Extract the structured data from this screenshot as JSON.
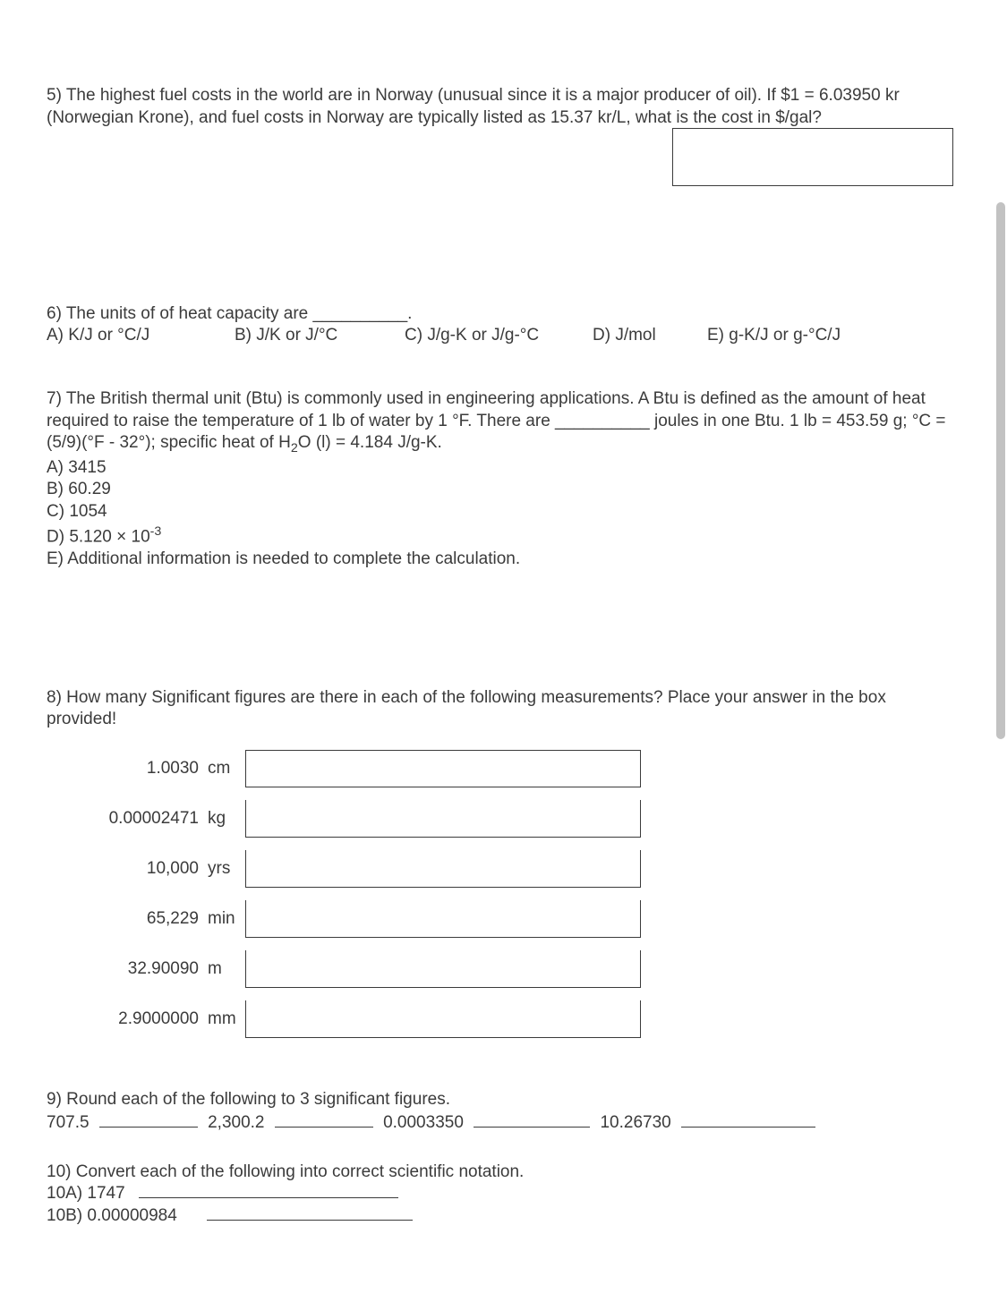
{
  "colors": {
    "text": "#3b3b3b",
    "bg": "#ffffff",
    "border": "#3b3b3b",
    "scroll": "#c2c2c2"
  },
  "q5": {
    "text": "5) The highest fuel costs in the world are in Norway (unusual since it is a major producer of oil).  If $1 = 6.03950 kr (Norwegian Krone), and fuel costs in Norway are typically listed as 15.37 kr/L, what is the cost in $/gal?"
  },
  "q6": {
    "stem": "6) The units of of heat capacity are __________.",
    "A": "A) K/J or °C/J",
    "B": "B) J/K or J/°C",
    "C": "C) J/g-K or J/g-°C",
    "D": "D) J/mol",
    "E": "E) g-K/J or g-°C/J"
  },
  "q7": {
    "line": "7) The British thermal unit (Btu) is commonly used in engineering applications.  A Btu is defined as the amount of heat required to raise the temperature of 1 lb of water by 1 °F.  There are __________ joules in one Btu.  1 lb = 453.59 g; °C = (5/9)(°F - 32°); specific heat of H",
    "line_tail": "O (l) = 4.184 J/g-K.",
    "A": "A) 3415",
    "B": "B) 60.29",
    "C": "C) 1054",
    "D_pre": "D) 5.120 × 10",
    "D_exp": "-3",
    "E": "E) Additional information is needed to complete the calculation."
  },
  "q8": {
    "stem": "8) How many Significant figures are there in each of the following measurements?  Place your answer in the box provided!",
    "rows": [
      {
        "val": "1.0030",
        "unit": "cm"
      },
      {
        "val": "0.00002471",
        "unit": "kg"
      },
      {
        "val": "10,000",
        "unit": "yrs"
      },
      {
        "val": "65,229",
        "unit": "min"
      },
      {
        "val": "32.90090",
        "unit": "m"
      },
      {
        "val": "2.9000000",
        "unit": "mm"
      }
    ]
  },
  "q9": {
    "stem": "9) Round each of the following to 3 significant figures.",
    "v1": "707.5",
    "v2": "2,300.2",
    "v3": "0.0003350",
    "v4": "10.26730"
  },
  "q10": {
    "stem": "10) Convert each of the following into correct scientific notation.",
    "a": "10A)  1747",
    "b": "10B)  0.00000984"
  }
}
